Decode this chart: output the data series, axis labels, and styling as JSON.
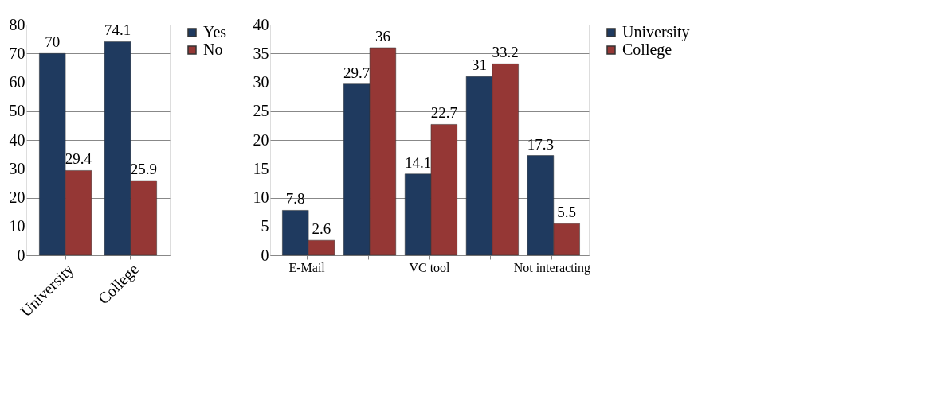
{
  "chart_data": [
    {
      "type": "bar",
      "categories": [
        "University",
        "College"
      ],
      "series": [
        {
          "name": "Yes",
          "color": "#1f3a5f",
          "values": [
            70,
            74.1
          ]
        },
        {
          "name": "No",
          "color": "#953735",
          "values": [
            29.4,
            25.9
          ]
        }
      ],
      "ylim": [
        0,
        80
      ],
      "yticks": [
        0,
        10,
        20,
        30,
        40,
        50,
        60,
        70,
        80
      ],
      "grid": "y",
      "legend": "right",
      "data_labels": true
    },
    {
      "type": "bar",
      "categories": [
        "E-Mail",
        null,
        "VC tool",
        null,
        "Not interacting"
      ],
      "series": [
        {
          "name": "University",
          "color": "#1f3a5f",
          "values": [
            7.8,
            29.7,
            14.1,
            31,
            17.3
          ]
        },
        {
          "name": "College",
          "color": "#953735",
          "values": [
            2.6,
            36,
            22.7,
            33.2,
            5.5
          ]
        }
      ],
      "ylim": [
        0,
        40
      ],
      "yticks": [
        0,
        5,
        10,
        15,
        20,
        25,
        30,
        35,
        40
      ],
      "grid": "y",
      "legend": "right",
      "data_labels": true
    }
  ]
}
